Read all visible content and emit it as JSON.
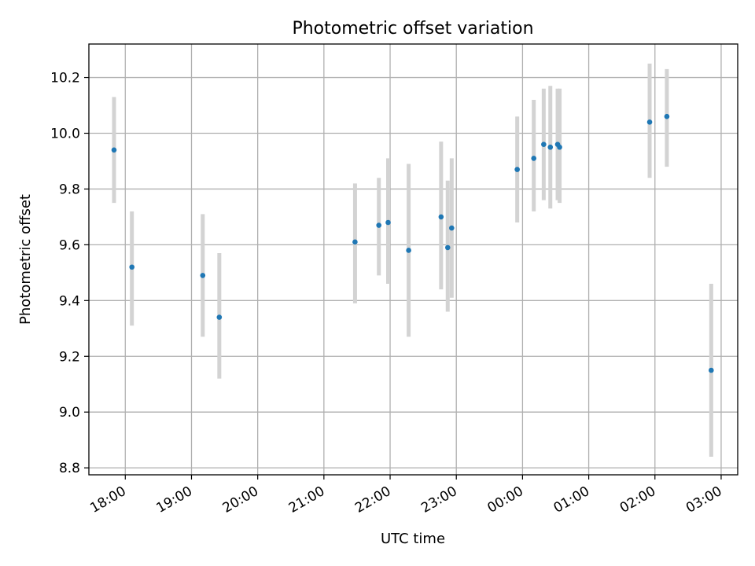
{
  "chart_data": {
    "type": "scatter",
    "title": "Photometric offset variation",
    "xlabel": "UTC time",
    "ylabel": "Photometric offset",
    "x_unit": "UTC time, hours since 00:00 (values >= 24 are after midnight)",
    "xlim": [
      17.45,
      27.25
    ],
    "ylim": [
      8.775,
      10.32
    ],
    "x_ticks": [
      {
        "value": 18,
        "label": "18:00"
      },
      {
        "value": 19,
        "label": "19:00"
      },
      {
        "value": 20,
        "label": "20:00"
      },
      {
        "value": 21,
        "label": "21:00"
      },
      {
        "value": 22,
        "label": "22:00"
      },
      {
        "value": 23,
        "label": "23:00"
      },
      {
        "value": 24,
        "label": "00:00"
      },
      {
        "value": 25,
        "label": "01:00"
      },
      {
        "value": 26,
        "label": "02:00"
      },
      {
        "value": 27,
        "label": "03:00"
      }
    ],
    "y_ticks": [
      {
        "value": 8.8,
        "label": "8.8"
      },
      {
        "value": 9.0,
        "label": "9.0"
      },
      {
        "value": 9.2,
        "label": "9.2"
      },
      {
        "value": 9.4,
        "label": "9.4"
      },
      {
        "value": 9.6,
        "label": "9.6"
      },
      {
        "value": 9.8,
        "label": "9.8"
      },
      {
        "value": 10.0,
        "label": "10.0"
      },
      {
        "value": 10.2,
        "label": "10.2"
      }
    ],
    "grid": true,
    "marker_color": "#1f77b4",
    "errorbar_color": "#d3d3d3",
    "series": [
      {
        "points": [
          {
            "x": 17.83,
            "y": 9.94,
            "yerr_low": 9.75,
            "yerr_high": 10.13
          },
          {
            "x": 18.1,
            "y": 9.52,
            "yerr_low": 9.31,
            "yerr_high": 9.72
          },
          {
            "x": 19.17,
            "y": 9.49,
            "yerr_low": 9.27,
            "yerr_high": 9.71
          },
          {
            "x": 19.42,
            "y": 9.34,
            "yerr_low": 9.12,
            "yerr_high": 9.57
          },
          {
            "x": 21.47,
            "y": 9.61,
            "yerr_low": 9.39,
            "yerr_high": 9.82
          },
          {
            "x": 21.83,
            "y": 9.67,
            "yerr_low": 9.49,
            "yerr_high": 9.84
          },
          {
            "x": 21.97,
            "y": 9.68,
            "yerr_low": 9.46,
            "yerr_high": 9.91
          },
          {
            "x": 22.28,
            "y": 9.58,
            "yerr_low": 9.27,
            "yerr_high": 9.89
          },
          {
            "x": 22.77,
            "y": 9.7,
            "yerr_low": 9.44,
            "yerr_high": 9.97
          },
          {
            "x": 22.87,
            "y": 9.59,
            "yerr_low": 9.36,
            "yerr_high": 9.83
          },
          {
            "x": 22.93,
            "y": 9.66,
            "yerr_low": 9.41,
            "yerr_high": 9.91
          },
          {
            "x": 23.92,
            "y": 9.87,
            "yerr_low": 9.68,
            "yerr_high": 10.06
          },
          {
            "x": 24.17,
            "y": 9.91,
            "yerr_low": 9.72,
            "yerr_high": 10.12
          },
          {
            "x": 24.32,
            "y": 9.96,
            "yerr_low": 9.76,
            "yerr_high": 10.16
          },
          {
            "x": 24.42,
            "y": 9.95,
            "yerr_low": 9.73,
            "yerr_high": 10.17
          },
          {
            "x": 24.53,
            "y": 9.96,
            "yerr_low": 9.76,
            "yerr_high": 10.16
          },
          {
            "x": 24.56,
            "y": 9.95,
            "yerr_low": 9.75,
            "yerr_high": 10.16
          },
          {
            "x": 25.92,
            "y": 10.04,
            "yerr_low": 9.84,
            "yerr_high": 10.25
          },
          {
            "x": 26.18,
            "y": 10.06,
            "yerr_low": 9.88,
            "yerr_high": 10.23
          },
          {
            "x": 26.85,
            "y": 9.15,
            "yerr_low": 8.84,
            "yerr_high": 9.46
          }
        ]
      }
    ]
  }
}
